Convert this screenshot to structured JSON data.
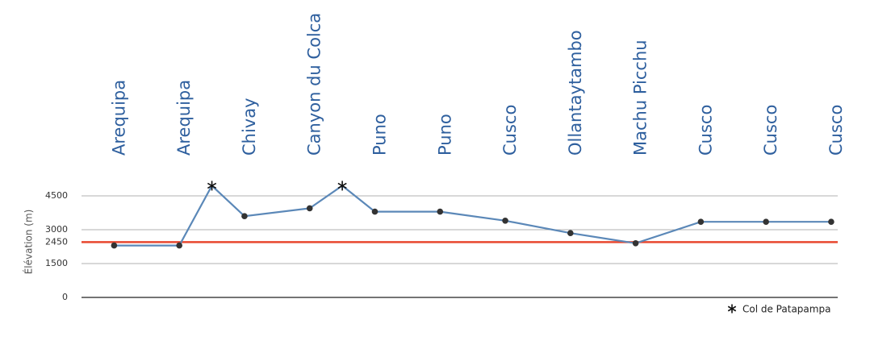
{
  "chart_data": {
    "type": "line",
    "ylabel": "Élévation (m)",
    "categories": [
      "Arequipa",
      "Arequipa",
      "Chivay",
      "Canyon du Colca",
      "Puno",
      "Puno",
      "Cusco",
      "Ollantaytambo",
      "Machu Picchu",
      "Cusco",
      "Cusco",
      "Cusco"
    ],
    "x": [
      0,
      1,
      1.5,
      2,
      3,
      3.5,
      4,
      5,
      6,
      7,
      8,
      9,
      10,
      11
    ],
    "values": [
      2300,
      2300,
      4950,
      3600,
      3950,
      4950,
      3800,
      3800,
      3400,
      2850,
      2400,
      3350,
      3350,
      3350
    ],
    "point_markers": [
      "dot",
      "dot",
      "asterisk",
      "dot",
      "dot",
      "asterisk",
      "dot",
      "dot",
      "dot",
      "dot",
      "dot",
      "dot",
      "dot",
      "dot"
    ],
    "color": "#5b88b8",
    "ylim": [
      0,
      5000
    ],
    "yticks": [
      0,
      1500,
      2450,
      3000,
      4500
    ],
    "grid": true,
    "reference_line": {
      "value": 2450,
      "color": "#e8472f"
    },
    "legend": {
      "label": "Col de Patapampa",
      "marker": "asterisk"
    }
  }
}
